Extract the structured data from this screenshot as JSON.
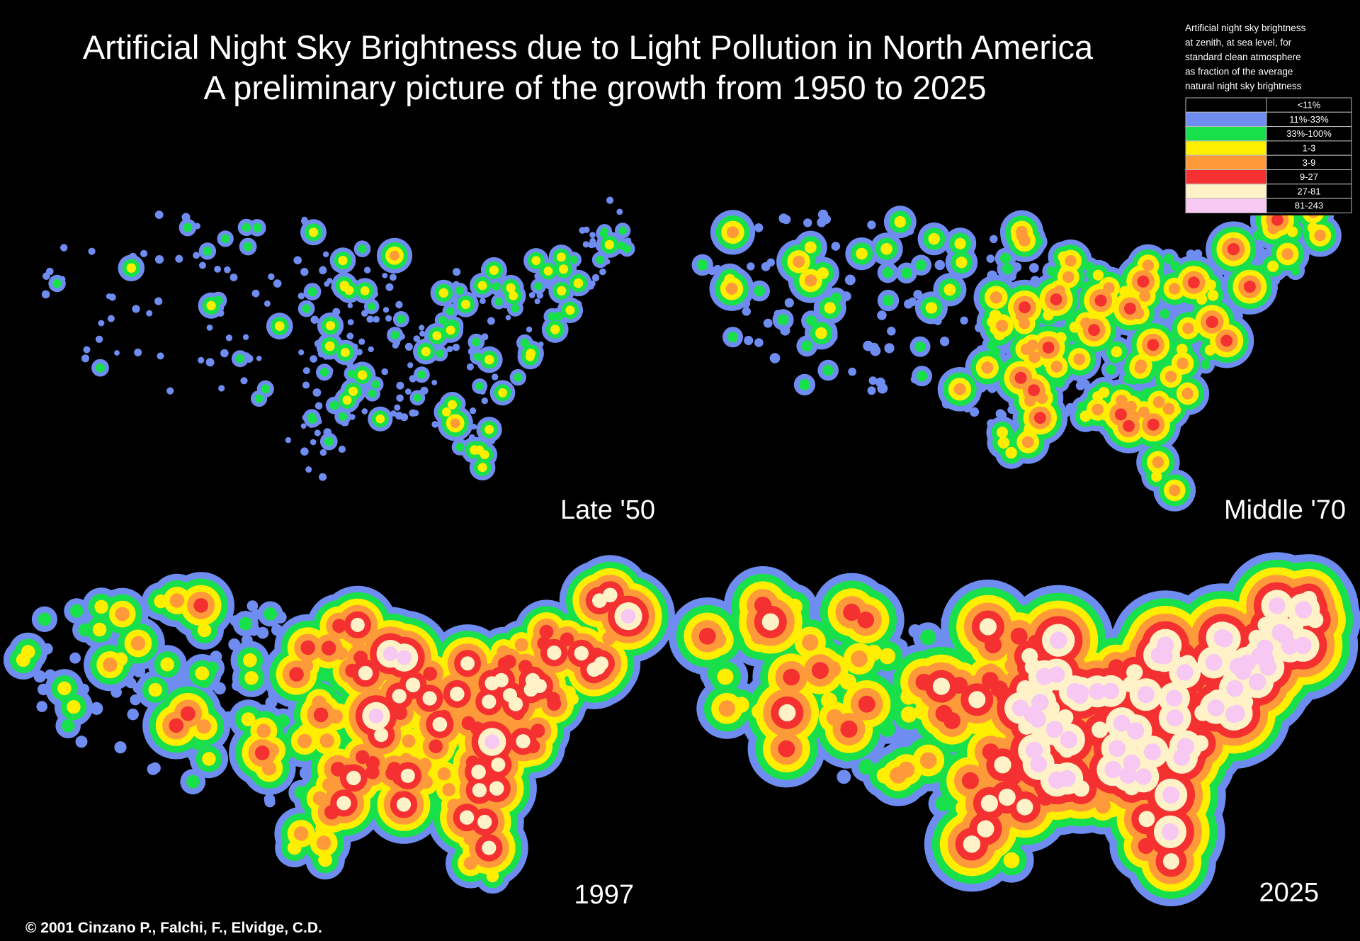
{
  "title": "Artificial Night Sky Brightness due to Light Pollution in North America",
  "subtitle": "A preliminary picture of the growth from 1950 to 2025",
  "legend": {
    "heading": [
      "Artificial night sky brightness",
      "at zenith, at sea level, for",
      "standard clean atmosphere",
      "as fraction of the average",
      "natural night sky brightness"
    ],
    "items": [
      {
        "label": "<11%",
        "color": "#000000"
      },
      {
        "label": "11%-33%",
        "color": "#6f8cf0"
      },
      {
        "label": "33%-100%",
        "color": "#18e04a"
      },
      {
        "label": "1-3",
        "color": "#ffee00"
      },
      {
        "label": "3-9",
        "color": "#ff9a3a"
      },
      {
        "label": "9-27",
        "color": "#f43030"
      },
      {
        "label": "27-81",
        "color": "#fff2c8"
      },
      {
        "label": "81-243",
        "color": "#f6c8f2"
      }
    ]
  },
  "panels": [
    {
      "label": "Late '50"
    },
    {
      "label": "Middle '70"
    },
    {
      "label": "1997"
    },
    {
      "label": "2025"
    }
  ],
  "credit": "© 2001  Cinzano P., Falchi, F., Elvidge, C.D."
}
